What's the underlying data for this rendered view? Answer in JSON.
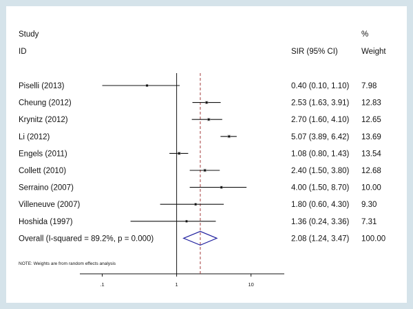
{
  "chart_data": {
    "type": "forest",
    "headers": {
      "study_line1": "Study",
      "study_line2": "ID",
      "estimate": "SIR (95% CI)",
      "weight_line1": "%",
      "weight_line2": "Weight"
    },
    "studies": [
      {
        "label": "Piselli (2013)",
        "sir": 0.4,
        "lo": 0.1,
        "hi": 1.1,
        "ci_text": "0.40 (0.10, 1.10)",
        "weight": "7.98"
      },
      {
        "label": "Cheung (2012)",
        "sir": 2.53,
        "lo": 1.63,
        "hi": 3.91,
        "ci_text": "2.53 (1.63, 3.91)",
        "weight": "12.83"
      },
      {
        "label": "Krynitz (2012)",
        "sir": 2.7,
        "lo": 1.6,
        "hi": 4.1,
        "ci_text": "2.70 (1.60, 4.10)",
        "weight": "12.65"
      },
      {
        "label": "Li  (2012)",
        "sir": 5.07,
        "lo": 3.89,
        "hi": 6.42,
        "ci_text": "5.07 (3.89, 6.42)",
        "weight": "13.69"
      },
      {
        "label": "Engels (2011)",
        "sir": 1.08,
        "lo": 0.8,
        "hi": 1.43,
        "ci_text": "1.08 (0.80, 1.43)",
        "weight": "13.54"
      },
      {
        "label": "Collett (2010)",
        "sir": 2.4,
        "lo": 1.5,
        "hi": 3.8,
        "ci_text": "2.40 (1.50, 3.80)",
        "weight": "12.68"
      },
      {
        "label": "Serraino (2007)",
        "sir": 4.0,
        "lo": 1.5,
        "hi": 8.7,
        "ci_text": "4.00 (1.50, 8.70)",
        "weight": "10.00"
      },
      {
        "label": "Villeneuve (2007)",
        "sir": 1.8,
        "lo": 0.6,
        "hi": 4.3,
        "ci_text": "1.80 (0.60, 4.30)",
        "weight": "9.30"
      },
      {
        "label": "Hoshida (1997)",
        "sir": 1.36,
        "lo": 0.24,
        "hi": 3.36,
        "ci_text": "1.36 (0.24, 3.36)",
        "weight": "7.31"
      }
    ],
    "overall": {
      "label": "Overall  (I-squared = 89.2%, p = 0.000)",
      "sir": 2.08,
      "lo": 1.24,
      "hi": 3.47,
      "ci_text": "2.08 (1.24, 3.47)",
      "weight": "100.00"
    },
    "note": "NOTE: Weights are from random effects analysis",
    "x_axis": {
      "scale": "log",
      "range": [
        0.05,
        28
      ],
      "ticks": [
        0.1,
        1,
        10
      ],
      "tick_labels": [
        ".1",
        "1",
        "10"
      ]
    },
    "null_line": 1,
    "colors": {
      "background": "#d5e3ea",
      "panel": "#ffffff",
      "ink": "#111111",
      "summary_line": "#a33a3a",
      "diamond": "#1f1f9e",
      "weight_box": "#9a9a9a"
    }
  }
}
